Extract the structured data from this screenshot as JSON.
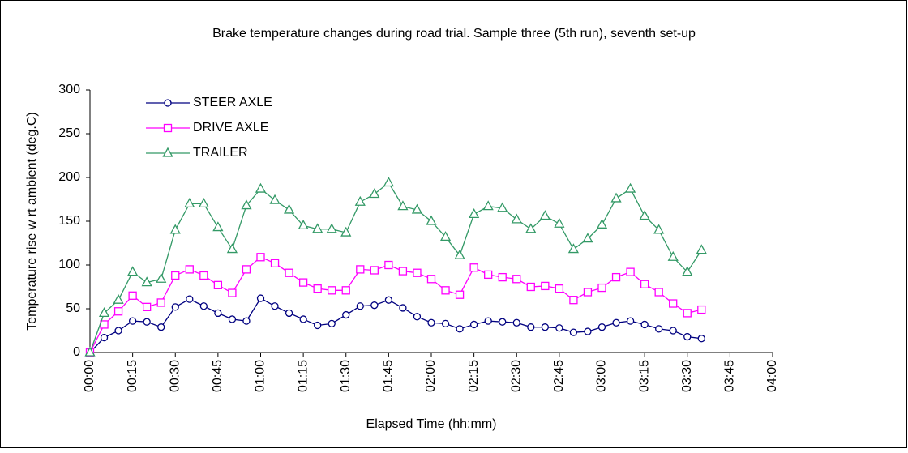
{
  "chart_data": {
    "type": "line",
    "title": "Brake temperature changes during road trial. Sample three (5th run), seventh set-up",
    "xlabel": "Elapsed Time (hh:mm)",
    "ylabel": "Temperature rise w rt ambient (deg.C)",
    "x": [
      0,
      5,
      10,
      15,
      20,
      25,
      30,
      35,
      40,
      45,
      50,
      55,
      60,
      65,
      70,
      75,
      80,
      85,
      90,
      95,
      100,
      105,
      110,
      115,
      120,
      125,
      130,
      135,
      140,
      145,
      150,
      155,
      160,
      165,
      170,
      175,
      180,
      185,
      190,
      195,
      200,
      205,
      210,
      215
    ],
    "series": [
      {
        "name": "STEER AXLE",
        "color": "#000080",
        "marker": "circle",
        "values": [
          0,
          17,
          25,
          36,
          35,
          29,
          52,
          61,
          53,
          45,
          38,
          36,
          62,
          53,
          45,
          38,
          31,
          33,
          43,
          53,
          54,
          60,
          51,
          41,
          34,
          33,
          27,
          32,
          36,
          35,
          34,
          29,
          29,
          28,
          23,
          24,
          29,
          34,
          36,
          32,
          27,
          25,
          18,
          16
        ]
      },
      {
        "name": "DRIVE AXLE",
        "color": "#ff00ff",
        "marker": "square",
        "values": [
          0,
          32,
          47,
          65,
          52,
          57,
          88,
          95,
          88,
          77,
          68,
          95,
          109,
          102,
          91,
          80,
          73,
          71,
          71,
          95,
          94,
          100,
          93,
          91,
          84,
          71,
          66,
          97,
          89,
          86,
          84,
          75,
          76,
          73,
          60,
          69,
          74,
          86,
          92,
          78,
          69,
          56,
          45,
          49
        ]
      },
      {
        "name": "TRAILER",
        "color": "#339966",
        "marker": "triangle",
        "values": [
          0,
          45,
          60,
          92,
          80,
          84,
          140,
          170,
          170,
          143,
          118,
          168,
          187,
          174,
          163,
          145,
          141,
          141,
          137,
          172,
          181,
          194,
          167,
          163,
          150,
          132,
          111,
          158,
          167,
          165,
          152,
          141,
          156,
          147,
          118,
          130,
          146,
          176,
          187,
          156,
          140,
          109,
          92,
          117
        ]
      }
    ],
    "xlim": [
      0,
      240
    ],
    "xticks": [
      {
        "value": 0,
        "label": "00:00"
      },
      {
        "value": 15,
        "label": "00:15"
      },
      {
        "value": 30,
        "label": "00:30"
      },
      {
        "value": 45,
        "label": "00:45"
      },
      {
        "value": 60,
        "label": "01:00"
      },
      {
        "value": 75,
        "label": "01:15"
      },
      {
        "value": 90,
        "label": "01:30"
      },
      {
        "value": 105,
        "label": "01:45"
      },
      {
        "value": 120,
        "label": "02:00"
      },
      {
        "value": 135,
        "label": "02:15"
      },
      {
        "value": 150,
        "label": "02:30"
      },
      {
        "value": 165,
        "label": "02:45"
      },
      {
        "value": 180,
        "label": "03:00"
      },
      {
        "value": 195,
        "label": "03:15"
      },
      {
        "value": 210,
        "label": "03:30"
      },
      {
        "value": 225,
        "label": "03:45"
      },
      {
        "value": 240,
        "label": "04:00"
      }
    ],
    "ylim": [
      0,
      300
    ],
    "yticks": [
      0,
      50,
      100,
      150,
      200,
      250,
      300
    ],
    "legend": "upper left"
  }
}
